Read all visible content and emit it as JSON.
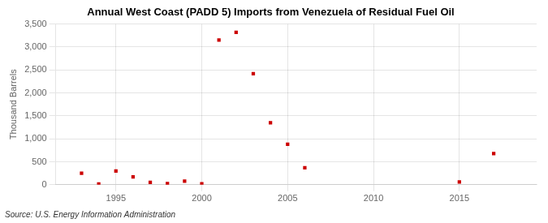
{
  "chart_data": {
    "type": "scatter",
    "title": "Annual West Coast (PADD 5) Imports from Venezuela of Residual Fuel Oil",
    "ylabel": "Thousand Barrels",
    "annotation": "Source: U.S. Energy Information Administration",
    "x": [
      1993,
      1994,
      1995,
      1996,
      1997,
      1998,
      1999,
      2000,
      2001,
      2002,
      2003,
      2004,
      2005,
      2006,
      2015,
      2017
    ],
    "values": [
      250,
      15,
      300,
      170,
      50,
      25,
      80,
      20,
      3150,
      3320,
      2420,
      1350,
      880,
      370,
      60,
      680
    ],
    "color": "#cc0000",
    "marker": "square",
    "xlim": [
      1991.5,
      2019.5
    ],
    "xticks": [
      1995,
      2000,
      2005,
      2010,
      2015
    ],
    "ylim": [
      0,
      3500
    ],
    "yticks": [
      0,
      500,
      {
        "value": 1000,
        "label": "1,000"
      },
      {
        "value": 1500,
        "label": "1,500"
      },
      {
        "value": 2000,
        "label": "2,000"
      },
      {
        "value": 2500,
        "label": "2,500"
      },
      {
        "value": 3000,
        "label": "3,000"
      },
      {
        "value": 3500,
        "label": "3,500"
      }
    ],
    "grid": true
  }
}
